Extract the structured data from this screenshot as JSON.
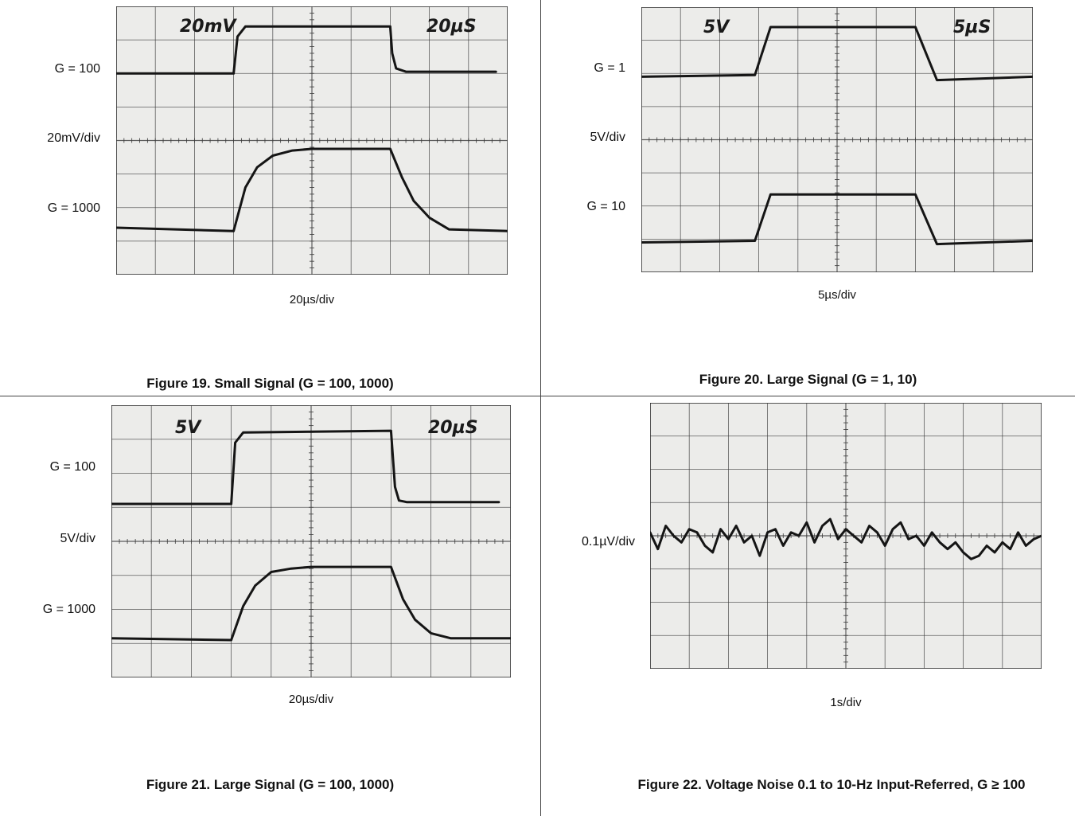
{
  "colors": {
    "screen": "#ececea",
    "screen_edge": "#d6d6d2",
    "grid": "#3a3a3a",
    "trace": "#151515",
    "background": "#ffffff"
  },
  "fig19": {
    "caption": "Figure 19. Small Signal (G = 100, 1000)",
    "label_top": "G = 100",
    "label_mid": "20mV/div",
    "label_bottom": "G = 1000",
    "xlabel": "20µs/div",
    "scope_left": "20mV",
    "scope_right": "20µS"
  },
  "fig20": {
    "caption": "Figure 20. Large Signal (G = 1, 10)",
    "label_top": "G = 1",
    "label_mid": "5V/div",
    "label_bottom": "G = 10",
    "xlabel": "5µs/div",
    "scope_left": "5V",
    "scope_right": "5µS"
  },
  "fig21": {
    "caption": "Figure 21. Large Signal (G = 100, 1000)",
    "label_top": "G = 100",
    "label_mid": "5V/div",
    "label_bottom": "G = 1000",
    "xlabel": "20µs/div",
    "scope_left": "5V",
    "scope_right": "20µS"
  },
  "fig22": {
    "caption": "Figure 22. Voltage Noise 0.1 to 10-Hz Input-Referred, G ≥ 100",
    "label_mid": "0.1µV/div",
    "xlabel": "1s/div"
  },
  "chart_data": [
    {
      "type": "line",
      "title": "Figure 19. Small Signal (G = 100, 1000)",
      "xlabel": "20µs/div",
      "ylabel": "20mV/div",
      "xlim": [
        0,
        10
      ],
      "ylim": [
        0,
        8
      ],
      "grid": true,
      "series": [
        {
          "name": "G = 100",
          "x": [
            0,
            3.0,
            3.1,
            3.3,
            7.0,
            7.05,
            7.15,
            7.4,
            9.7
          ],
          "y": [
            6.0,
            6.0,
            7.1,
            7.4,
            7.4,
            6.6,
            6.15,
            6.05,
            6.05
          ]
        },
        {
          "name": "G = 1000",
          "x": [
            0,
            3.0,
            3.3,
            3.6,
            4.0,
            4.5,
            5.0,
            7.0,
            7.3,
            7.6,
            8.0,
            8.5,
            10
          ],
          "y": [
            1.4,
            1.3,
            2.6,
            3.2,
            3.55,
            3.7,
            3.75,
            3.75,
            2.9,
            2.2,
            1.7,
            1.35,
            1.3
          ]
        }
      ]
    },
    {
      "type": "line",
      "title": "Figure 20. Large Signal (G = 1, 10)",
      "xlabel": "5µs/div",
      "ylabel": "5V/div",
      "xlim": [
        0,
        10
      ],
      "ylim": [
        0,
        8
      ],
      "grid": true,
      "series": [
        {
          "name": "G = 1",
          "x": [
            0,
            2.9,
            3.3,
            7.0,
            7.55,
            10
          ],
          "y": [
            5.9,
            5.95,
            7.4,
            7.4,
            5.8,
            5.9
          ]
        },
        {
          "name": "G = 10",
          "x": [
            0,
            2.9,
            3.3,
            7.0,
            7.55,
            10
          ],
          "y": [
            0.9,
            0.95,
            2.35,
            2.35,
            0.85,
            0.95
          ]
        }
      ]
    },
    {
      "type": "line",
      "title": "Figure 21. Large Signal (G = 100, 1000)",
      "xlabel": "20µs/div",
      "ylabel": "5V/div",
      "xlim": [
        0,
        10
      ],
      "ylim": [
        0,
        8
      ],
      "grid": true,
      "series": [
        {
          "name": "G = 100",
          "x": [
            0,
            3.0,
            3.1,
            3.3,
            7.0,
            7.1,
            7.2,
            7.4,
            9.7
          ],
          "y": [
            5.1,
            5.1,
            6.9,
            7.2,
            7.25,
            5.6,
            5.2,
            5.15,
            5.15
          ]
        },
        {
          "name": "G = 1000",
          "x": [
            0,
            3.0,
            3.3,
            3.6,
            4.0,
            4.5,
            5.0,
            7.0,
            7.3,
            7.6,
            8.0,
            8.5,
            10
          ],
          "y": [
            1.15,
            1.1,
            2.1,
            2.7,
            3.1,
            3.2,
            3.25,
            3.25,
            2.3,
            1.7,
            1.3,
            1.15,
            1.15
          ]
        }
      ]
    },
    {
      "type": "line",
      "title": "Figure 22. Voltage Noise 0.1 to 10-Hz Input-Referred, G ≥ 100",
      "xlabel": "1s/div",
      "ylabel": "0.1µV/div",
      "xlim": [
        0,
        10
      ],
      "ylim": [
        -4,
        4
      ],
      "grid": true,
      "series": [
        {
          "name": "noise",
          "x": [
            0,
            0.2,
            0.4,
            0.6,
            0.8,
            1.0,
            1.2,
            1.4,
            1.6,
            1.8,
            2.0,
            2.2,
            2.4,
            2.6,
            2.8,
            3.0,
            3.2,
            3.4,
            3.6,
            3.8,
            4.0,
            4.2,
            4.4,
            4.6,
            4.8,
            5.0,
            5.2,
            5.4,
            5.6,
            5.8,
            6.0,
            6.2,
            6.4,
            6.6,
            6.8,
            7.0,
            7.2,
            7.4,
            7.6,
            7.8,
            8.0,
            8.2,
            8.4,
            8.6,
            8.8,
            9.0,
            9.2,
            9.4,
            9.6,
            9.8,
            10.0
          ],
          "y": [
            0.1,
            -0.4,
            0.3,
            0.0,
            -0.2,
            0.2,
            0.1,
            -0.3,
            -0.5,
            0.2,
            -0.1,
            0.3,
            -0.2,
            0.0,
            -0.6,
            0.1,
            0.2,
            -0.3,
            0.1,
            0.0,
            0.4,
            -0.2,
            0.3,
            0.5,
            -0.1,
            0.2,
            0.0,
            -0.2,
            0.3,
            0.1,
            -0.3,
            0.2,
            0.4,
            -0.1,
            0.0,
            -0.3,
            0.1,
            -0.2,
            -0.4,
            -0.2,
            -0.5,
            -0.7,
            -0.6,
            -0.3,
            -0.5,
            -0.2,
            -0.4,
            0.1,
            -0.3,
            -0.1,
            0.0
          ]
        }
      ]
    }
  ]
}
